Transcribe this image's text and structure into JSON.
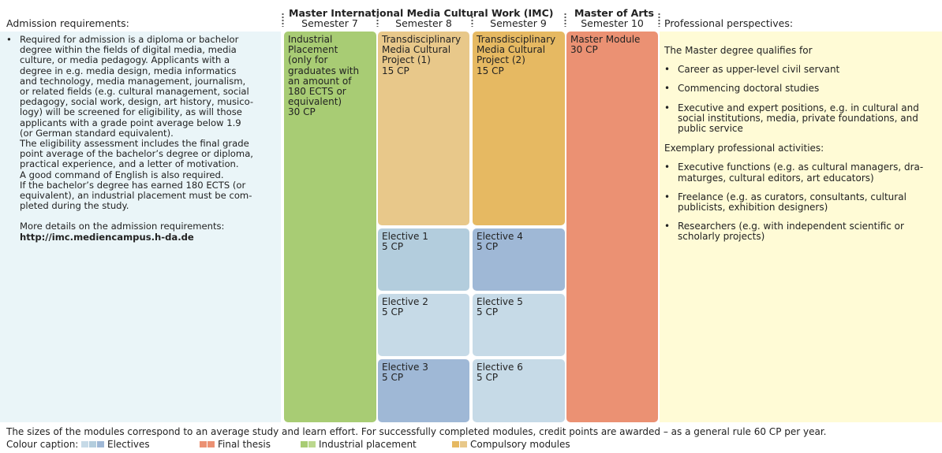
{
  "header": {
    "admission_title": "Admission requirements:",
    "program_title": "Master International Media Cultural Work (IMC)",
    "degree_title": "Master of Arts",
    "perspectives_title": "Professional perspectives:",
    "semesters": [
      "Semester 7",
      "Semester 8",
      "Semester 9",
      "Semester 10"
    ]
  },
  "admission": {
    "bullet": "•",
    "lines": [
      "Required for admission is a diploma or bachelor",
      "degree within the fields of digital media, media",
      "culture, or media pedagogy. Applicants with a",
      "degree in e.g. media design, media informatics",
      "and technology, media management, journalism,",
      "or related fields (e.g. cultural management, social",
      "pedagogy, social work, design, art history, musico-",
      "logy) will be screened for eligibility, as will those",
      "applicants with a grade point average below 1.9",
      "(or German standard equivalent).",
      "The eligibility assessment includes the final grade",
      "point average of the bachelor’s degree or diploma,",
      "practical experience, and a letter of motivation.",
      "A good command of English is also required.",
      "If the bachelor’s degree has earned 180 ECTS (or",
      "equivalent), an industrial placement must be com-",
      "pleted during the study."
    ],
    "more_details": "More details on the admission requirements:",
    "url": "http://imc.mediencampus.h-da.de"
  },
  "modules": {
    "placement": {
      "lines": [
        "Industrial",
        "Placement",
        "(only for",
        "graduates with",
        "an amount of",
        "180 ECTS or",
        "equivalent)",
        "30 CP"
      ]
    },
    "project1": {
      "lines": [
        "Transdisciplinary",
        "Media Cultural",
        "Project (1)",
        "15 CP"
      ]
    },
    "project2": {
      "lines": [
        "Transdisciplinary",
        "Media Cultural",
        "Project (2)",
        "15 CP"
      ]
    },
    "master_module": {
      "lines": [
        "Master Module",
        "30 CP"
      ]
    },
    "electives": [
      {
        "label": "Elective 1",
        "cp": "5 CP"
      },
      {
        "label": "Elective 2",
        "cp": "5 CP"
      },
      {
        "label": "Elective 3",
        "cp": "5 CP"
      },
      {
        "label": "Elective 4",
        "cp": "5 CP"
      },
      {
        "label": "Elective 5",
        "cp": "5 CP"
      },
      {
        "label": "Elective 6",
        "cp": "5 CP"
      }
    ]
  },
  "perspectives": {
    "intro": "The Master degree qualifies for",
    "qualifies": [
      [
        "Career as upper-level civil servant"
      ],
      [
        "Commencing doctoral studies"
      ],
      [
        "Executive and expert positions, e.g. in cultural and",
        "social institutions, media, private foundations, and",
        "public service"
      ]
    ],
    "activities_title": "Exemplary professional activities:",
    "activities": [
      [
        "Executive functions (e.g. as cultural managers, dra-",
        "maturges, cultural editors, art educators)"
      ],
      [
        "Freelance (e.g. as curators, consultants, cultural",
        "publicists, exhibition designers)"
      ],
      [
        "Researchers (e.g. with independent scientific or",
        "scholarly projects)"
      ]
    ]
  },
  "footer": {
    "note": "The sizes of the modules correspond to an average study and learn effort. For successfully completed modules, credit points are awarded – as a general rule 60 CP per year.",
    "caption_label": "Colour caption:",
    "legend": [
      "Electives",
      "Final thesis",
      "Industrial placement",
      "Compulsory modules"
    ]
  },
  "colors": {
    "placement": "#a8cc74",
    "project1": "#e8c88a",
    "project2": "#e6b962",
    "master": "#eb9173",
    "elective_light": "#c6dae7",
    "elective_mid": "#b3cddd",
    "elective_dark": "#9fb8d6",
    "panel_left": "#eaf5f8",
    "panel_right": "#fffbd6"
  }
}
